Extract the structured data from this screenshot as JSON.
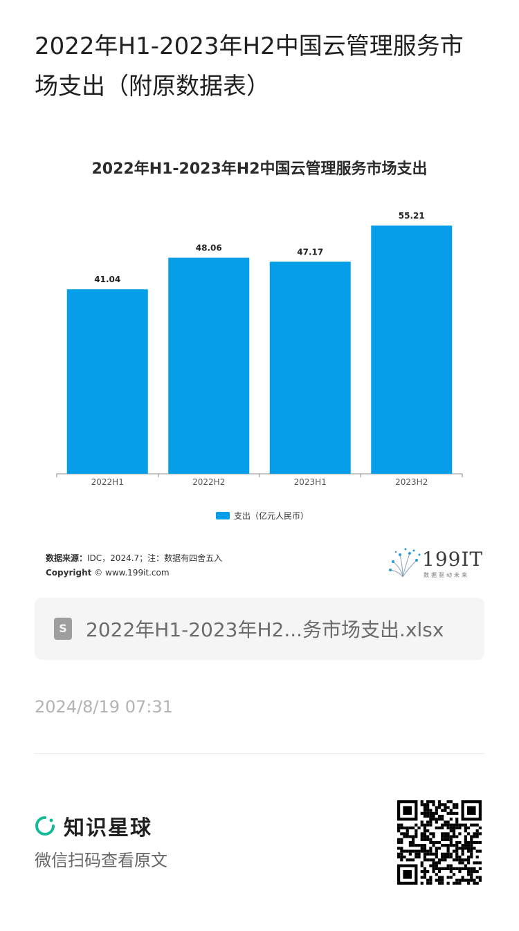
{
  "page": {
    "title": "2022年H1-2023年H2中国云管理服务市场支出（附原数据表）"
  },
  "chart_data": {
    "type": "bar",
    "title": "2022年H1-2023年H2中国云管理服务市场支出",
    "categories": [
      "2022H1",
      "2022H2",
      "2023H1",
      "2023H2"
    ],
    "series": [
      {
        "name": "支出（亿元人民币）",
        "values": [
          41.04,
          48.06,
          47.17,
          55.21
        ],
        "color": "#069ee8"
      }
    ],
    "value_labels": [
      "41.04",
      "48.06",
      "47.17",
      "55.21"
    ],
    "ylim": [
      0,
      60
    ],
    "grid": false,
    "legend_position": "bottom"
  },
  "source": {
    "label": "数据来源：",
    "text": "IDC，2024.7；注：数据有四舍五入",
    "copyright_label": "Copyright",
    "copyright_text": "© www.199it.com"
  },
  "brand": {
    "name": "199IT",
    "slogan": "数据驱动未来"
  },
  "attachment": {
    "file_name": "2022年H1-2023年H2...务市场支出.xlsx",
    "icon": "spreadsheet-file-icon",
    "icon_letter": "S"
  },
  "meta": {
    "timestamp": "2024/8/19 07:31"
  },
  "footer": {
    "app_name": "知识星球",
    "hint": "微信扫码查看原文",
    "accent": "#16b998"
  }
}
